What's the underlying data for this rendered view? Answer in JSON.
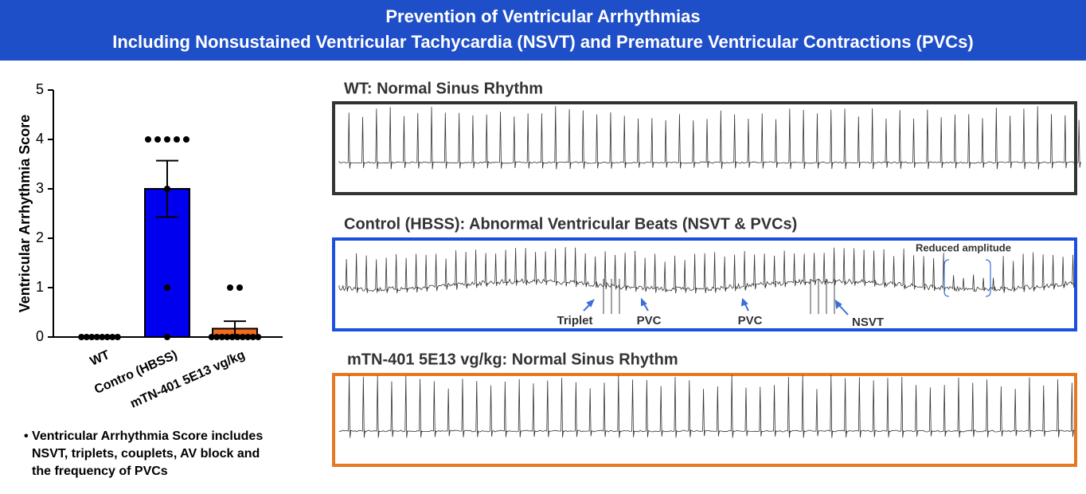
{
  "header": {
    "title_line1": "Prevention of Ventricular Arrhythmias",
    "title_line2": "Including Nonsustained Ventricular Tachycardia (NSVT) and Premature Ventricular Contractions (PVCs)"
  },
  "chart_data": {
    "type": "bar",
    "y_label": "Ventricular Arrhythmia Score",
    "categories": [
      "WT",
      "Contro (HBSS)",
      "mTN-401 5E13 vg/kg"
    ],
    "values": [
      0,
      3,
      0.17
    ],
    "errors": [
      0,
      0.57,
      0.15
    ],
    "colors": [
      "#1a1aff",
      "#0000ee",
      "#f26a1b"
    ],
    "points": [
      [
        0,
        0,
        0,
        0,
        0,
        0,
        0,
        0
      ],
      [
        4,
        4,
        4,
        4,
        4,
        3,
        1,
        0
      ],
      [
        1,
        1,
        0,
        0,
        0,
        0,
        0,
        0,
        0,
        0,
        0,
        0
      ]
    ],
    "ylim": [
      0,
      5
    ],
    "yticks": [
      0,
      1,
      2,
      3,
      4,
      5
    ],
    "grid": false
  },
  "panels": [
    {
      "title": "WT: Normal Sinus Rhythm",
      "annotations": []
    },
    {
      "title": "Control (HBSS): Abnormal Ventricular Beats (NSVT & PVCs)",
      "annotations": [
        "Triplet",
        "PVC",
        "PVC",
        "NSVT",
        "Reduced amplitude"
      ]
    },
    {
      "title": "mTN-401 5E13 vg/kg: Normal Sinus Rhythm",
      "annotations": []
    }
  ],
  "note": [
    "• Ventricular Arrhythmia Score includes",
    "NSVT, triplets, couplets, AV block and",
    "the frequency of PVCs"
  ]
}
